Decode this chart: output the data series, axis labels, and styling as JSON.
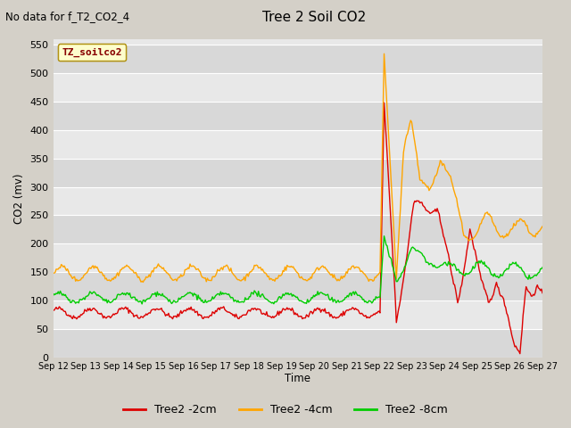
{
  "title": "Tree 2 Soil CO2",
  "suptitle": "No data for f_T2_CO2_4",
  "ylabel": "CO2 (mv)",
  "xlabel": "Time",
  "legend_title": "TZ_soilco2",
  "series_labels": [
    "Tree2 -2cm",
    "Tree2 -4cm",
    "Tree2 -8cm"
  ],
  "series_colors": [
    "#dd0000",
    "#ffa500",
    "#00cc00"
  ],
  "ylim": [
    0,
    560
  ],
  "yticks": [
    0,
    50,
    100,
    150,
    200,
    250,
    300,
    350,
    400,
    450,
    500,
    550
  ],
  "xtick_labels": [
    "Sep 12",
    "Sep 13",
    "Sep 14",
    "Sep 15",
    "Sep 16",
    "Sep 17",
    "Sep 18",
    "Sep 19",
    "Sep 20",
    "Sep 21",
    "Sep 22",
    "Sep 23",
    "Sep 24",
    "Sep 25",
    "Sep 26",
    "Sep 27"
  ],
  "fig_bg_color": "#d4d0c8",
  "plot_bg_color": "#e8e8e8",
  "band_color_dark": "#d8d8d8",
  "band_color_light": "#e8e8e8",
  "grid_color": "#ffffff",
  "n_points": 480
}
